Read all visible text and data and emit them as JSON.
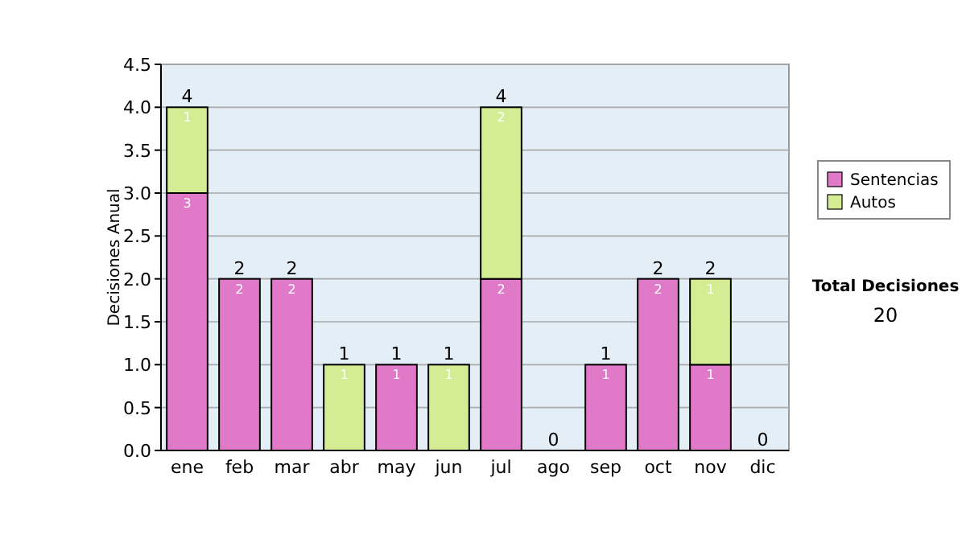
{
  "chart_data": {
    "type": "bar",
    "stacked": true,
    "ylabel": "Decisiones Anual",
    "categories": [
      "ene",
      "feb",
      "mar",
      "abr",
      "may",
      "jun",
      "jul",
      "ago",
      "sep",
      "oct",
      "nov",
      "dic"
    ],
    "series": [
      {
        "name": "Sentencias",
        "color": "#e07ac8",
        "values": [
          3,
          2,
          2,
          0,
          1,
          0,
          2,
          0,
          1,
          2,
          1,
          0
        ],
        "value_labels": [
          "3",
          "2",
          "2",
          null,
          "1",
          null,
          "2",
          null,
          "1",
          "2",
          "1",
          null
        ]
      },
      {
        "name": "Autos",
        "color": "#d4ec94",
        "values": [
          1,
          0,
          0,
          1,
          0,
          1,
          2,
          0,
          0,
          0,
          1,
          0
        ],
        "value_labels": [
          "1",
          null,
          null,
          "1",
          null,
          "1",
          "2",
          null,
          null,
          null,
          "1",
          null
        ]
      }
    ],
    "totals": [
      "4",
      "2",
      "2",
      "1",
      "1",
      "1",
      "4",
      "0",
      "1",
      "2",
      "2",
      "0"
    ],
    "ylim": [
      0,
      4.5
    ],
    "yticks": [
      {
        "value": 0,
        "label": "0.0"
      },
      {
        "value": 0.5,
        "label": "0.5"
      },
      {
        "value": 1,
        "label": "1.0"
      },
      {
        "value": 1.5,
        "label": "1.5"
      },
      {
        "value": 2,
        "label": "2.0"
      },
      {
        "value": 2.5,
        "label": "2.5"
      },
      {
        "value": 3,
        "label": "3.0"
      },
      {
        "value": 3.5,
        "label": "3.5"
      },
      {
        "value": 4,
        "label": "4.0"
      },
      {
        "value": 4.5,
        "label": "4.5"
      }
    ],
    "grid": "y",
    "legend": "right",
    "annotations": [
      "Total Decisiones",
      "20"
    ]
  }
}
